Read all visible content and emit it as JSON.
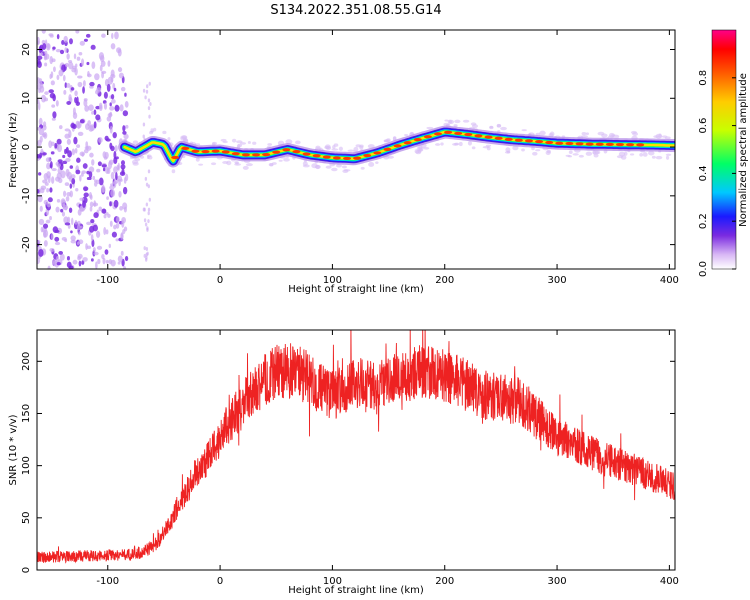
{
  "figure": {
    "title": "S134.2022.351.08.55.G14"
  },
  "chart_data": [
    {
      "type": "heatmap",
      "title": "",
      "xlabel": "Height of straight line (km)",
      "ylabel": "Frequency (Hz)",
      "xlim": [
        -163,
        405
      ],
      "ylim": [
        -25,
        24
      ],
      "xticks": [
        -100,
        0,
        100,
        200,
        300,
        400
      ],
      "yticks": [
        -20,
        -10,
        0,
        10,
        20
      ],
      "colorbar": {
        "label": "Normalized spectral amplitude",
        "range": [
          0,
          1
        ],
        "ticks": [
          0.0,
          0.2,
          0.4,
          0.6,
          0.8
        ]
      },
      "ridge": {
        "x": [
          -85,
          -75,
          -60,
          -50,
          -42,
          -35,
          -20,
          0,
          20,
          40,
          60,
          80,
          100,
          120,
          140,
          160,
          180,
          200,
          220,
          240,
          260,
          280,
          300,
          330,
          360,
          390,
          405
        ],
        "y": [
          0,
          -1,
          1,
          0.5,
          -3,
          0,
          -1,
          -0.8,
          -1.6,
          -1.6,
          -0.5,
          -1.6,
          -2.2,
          -2.4,
          -1.2,
          0.4,
          1.8,
          3.1,
          2.6,
          2.0,
          1.5,
          1.2,
          0.8,
          0.6,
          0.5,
          0.4,
          0.3
        ]
      }
    },
    {
      "type": "line",
      "title": "",
      "xlabel": "Height of straight line (km)",
      "ylabel": "SNR (10 * v/v)",
      "xlim": [
        -163,
        405
      ],
      "ylim": [
        0,
        230
      ],
      "xticks": [
        -100,
        0,
        100,
        200,
        300,
        400
      ],
      "yticks": [
        0,
        50,
        100,
        150,
        200
      ],
      "series": [
        {
          "color": "#ee2222",
          "x": [
            -163,
            -130,
            -100,
            -80,
            -70,
            -60,
            -50,
            -40,
            -30,
            -20,
            -10,
            0,
            10,
            20,
            30,
            40,
            50,
            60,
            70,
            80,
            90,
            100,
            110,
            120,
            130,
            140,
            150,
            160,
            170,
            180,
            190,
            200,
            210,
            220,
            230,
            240,
            250,
            260,
            270,
            280,
            290,
            300,
            320,
            340,
            360,
            380,
            405
          ],
          "y": [
            12,
            13,
            14,
            15,
            17,
            22,
            35,
            55,
            75,
            95,
            108,
            128,
            145,
            158,
            170,
            182,
            190,
            192,
            190,
            182,
            173,
            168,
            172,
            180,
            176,
            180,
            183,
            186,
            188,
            191,
            190,
            187,
            181,
            177,
            171,
            166,
            165,
            163,
            160,
            148,
            138,
            128,
            117,
            107,
            100,
            91,
            80
          ]
        }
      ]
    }
  ]
}
